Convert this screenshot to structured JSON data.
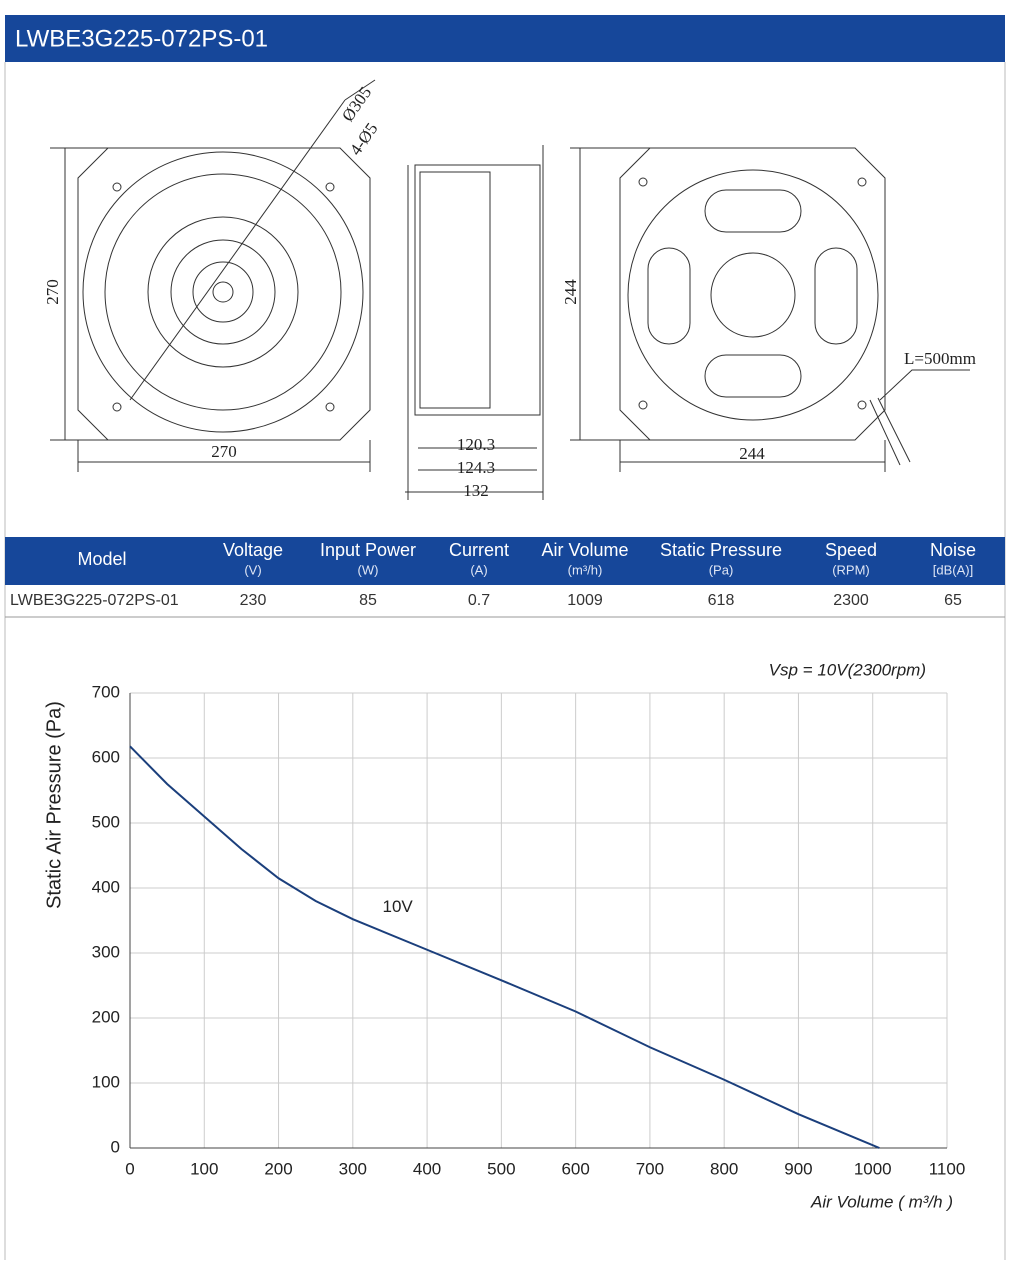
{
  "header": {
    "title": "LWBE3G225-072PS-01"
  },
  "drawing": {
    "labels": [
      "Ø305",
      "4-Ø5",
      "270",
      "270",
      "120.3",
      "124.3",
      "132",
      "244",
      "244",
      "L=500mm"
    ]
  },
  "table": {
    "columns": [
      {
        "name": "Model"
      },
      {
        "name": "Voltage",
        "unit": "(V)"
      },
      {
        "name": "Input Power",
        "unit": "(W)"
      },
      {
        "name": "Current",
        "unit": "(A)"
      },
      {
        "name": "Air Volume",
        "unit": "(m³/h)"
      },
      {
        "name": "Static Pressure",
        "unit": "(Pa)"
      },
      {
        "name": "Speed",
        "unit": "(RPM)"
      },
      {
        "name": "Noise",
        "unit": "[dB(A)]"
      }
    ],
    "rows": [
      [
        "LWBE3G225-072PS-01",
        230,
        85,
        0.7,
        1009,
        618,
        2300,
        65
      ]
    ]
  },
  "chart_data": {
    "type": "line",
    "annotation": "Vsp = 10V(2300rpm)",
    "x_label": "Air Volume ( m³/h )",
    "y_label": "Static Air Pressure  (Pa)",
    "x": [
      0,
      50,
      100,
      150,
      200,
      250,
      300,
      400,
      500,
      600,
      700,
      800,
      900,
      1009
    ],
    "series": [
      {
        "name": "10V",
        "color": "#1b3f7c",
        "values": [
          618,
          560,
          510,
          460,
          415,
          380,
          352,
          305,
          258,
          210,
          155,
          105,
          52,
          0
        ]
      }
    ],
    "xlim": [
      0,
      1100
    ],
    "xticks": [
      0,
      100,
      200,
      300,
      400,
      500,
      600,
      700,
      800,
      900,
      1000,
      1100
    ],
    "ylim": [
      0,
      700
    ],
    "yticks": [
      0,
      100,
      200,
      300,
      400,
      500,
      600,
      700
    ],
    "grid": true
  }
}
